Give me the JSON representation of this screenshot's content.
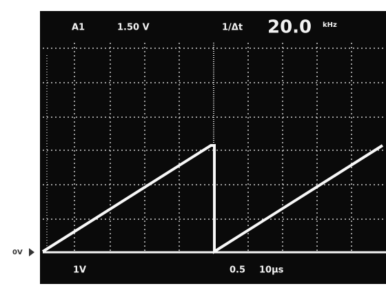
{
  "readout": {
    "channel": "A1",
    "trigger_level": "1.50 V",
    "measure_label": "1/Δt",
    "measure_value": "20.0",
    "measure_unit": "kHz"
  },
  "ground_marker": "0V",
  "footer": {
    "volts_per_div": "1V",
    "delay": "0.5",
    "time_per_div": "10µs"
  }
}
